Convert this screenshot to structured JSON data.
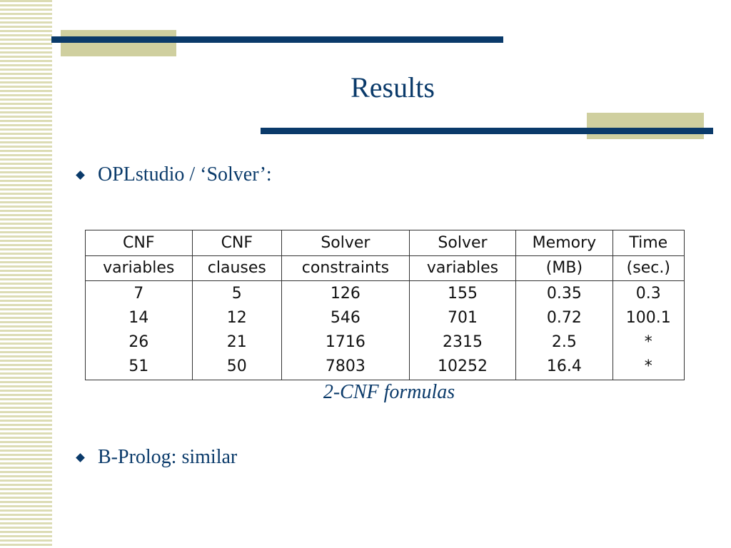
{
  "slide": {
    "title": "Results",
    "bullets": [
      "OPLstudio / ‘Solver’:",
      "B-Prolog: similar"
    ],
    "table": {
      "headers": [
        [
          "CNF",
          "variables"
        ],
        [
          "CNF",
          "clauses"
        ],
        [
          "Solver",
          "constraints"
        ],
        [
          "Solver",
          "variables"
        ],
        [
          "Memory",
          "(MB)"
        ],
        [
          "Time",
          "(sec.)"
        ]
      ],
      "rows": [
        [
          "7",
          "5",
          "126",
          "155",
          "0.35",
          "0.3"
        ],
        [
          "14",
          "12",
          "546",
          "701",
          "0.72",
          "100.1"
        ],
        [
          "26",
          "21",
          "1716",
          "2315",
          "2.5",
          "*"
        ],
        [
          "51",
          "50",
          "7803",
          "10252",
          "16.4",
          "*"
        ]
      ],
      "caption": "2-CNF formulas"
    },
    "colors": {
      "navy": "#0a3a6a",
      "khaki": "#cfcf9f",
      "stripe": "#dcdcb4"
    }
  }
}
